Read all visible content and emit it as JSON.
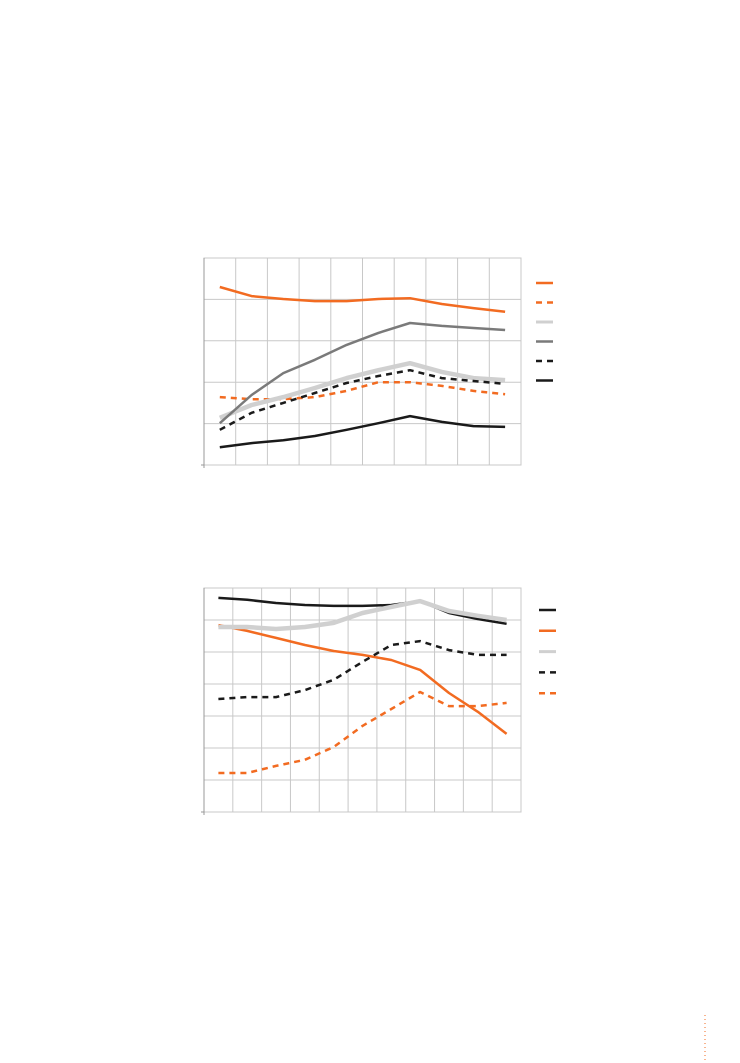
{
  "chart_data": [
    {
      "type": "line",
      "categories": [
        null,
        null,
        null,
        null,
        null,
        null,
        null,
        null,
        null,
        null
      ],
      "ylim": [
        0,
        5
      ],
      "yticks": [
        0,
        1,
        2,
        3,
        4,
        5
      ],
      "grid": true,
      "legend": "right",
      "series": [
        {
          "color": "#f26b21",
          "line_style": "solid",
          "values": [
            4.3,
            4.08,
            4.01,
            3.96,
            3.96,
            4.01,
            4.03,
            3.89,
            3.79,
            3.7
          ]
        },
        {
          "color": "#f26b21",
          "line_style": "dashed",
          "values": [
            1.64,
            1.59,
            1.59,
            1.64,
            1.79,
            2.0,
            2.0,
            1.91,
            1.79,
            1.71
          ]
        },
        {
          "color": "#d0d0d0",
          "line_style": "thick",
          "values": [
            1.14,
            1.45,
            1.64,
            1.86,
            2.1,
            2.29,
            2.46,
            2.25,
            2.1,
            2.05
          ]
        },
        {
          "color": "#7a7a7a",
          "line_style": "solid",
          "values": [
            1.01,
            1.69,
            2.22,
            2.54,
            2.9,
            3.19,
            3.43,
            3.36,
            3.31,
            3.26
          ]
        },
        {
          "color": "#1a1a1a",
          "line_style": "dashed",
          "values": [
            0.85,
            1.26,
            1.5,
            1.74,
            1.98,
            2.15,
            2.29,
            2.1,
            2.03,
            1.96
          ]
        },
        {
          "color": "#1a1a1a",
          "line_style": "solid",
          "values": [
            0.43,
            0.53,
            0.6,
            0.7,
            0.85,
            1.01,
            1.18,
            1.04,
            0.94,
            0.92
          ]
        }
      ]
    },
    {
      "type": "line",
      "categories": [
        null,
        null,
        null,
        null,
        null,
        null,
        null,
        null,
        null,
        null,
        null
      ],
      "ylim": [
        0,
        7
      ],
      "yticks": [
        0,
        1,
        2,
        3,
        4,
        5,
        6,
        7
      ],
      "grid": true,
      "legend": "right",
      "series": [
        {
          "color": "#1a1a1a",
          "line_style": "solid",
          "values": [
            6.69,
            6.63,
            6.53,
            6.47,
            6.44,
            6.44,
            6.47,
            6.59,
            6.22,
            6.03,
            5.88
          ]
        },
        {
          "color": "#f26b21",
          "line_style": "solid",
          "values": [
            5.84,
            5.66,
            5.44,
            5.22,
            5.03,
            4.91,
            4.75,
            4.44,
            3.72,
            3.13,
            2.44
          ]
        },
        {
          "color": "#d0d0d0",
          "line_style": "thick",
          "values": [
            5.78,
            5.78,
            5.72,
            5.78,
            5.91,
            6.22,
            6.41,
            6.59,
            6.28,
            6.13,
            6.0
          ]
        },
        {
          "color": "#1a1a1a",
          "line_style": "dashed",
          "values": [
            3.53,
            3.59,
            3.59,
            3.81,
            4.13,
            4.69,
            5.22,
            5.34,
            5.06,
            4.91,
            4.91
          ]
        },
        {
          "color": "#f26b21",
          "line_style": "dashed",
          "values": [
            1.22,
            1.22,
            1.44,
            1.63,
            2.03,
            2.69,
            3.22,
            3.75,
            3.31,
            3.31,
            3.41
          ]
        }
      ]
    }
  ]
}
